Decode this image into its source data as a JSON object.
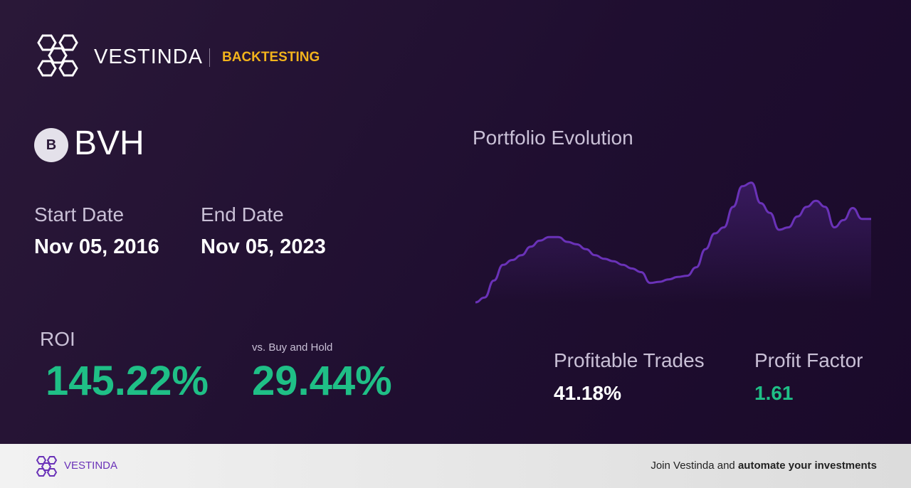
{
  "header": {
    "brand": "VESTINDA",
    "section": "BACKTESTING"
  },
  "asset": {
    "icon": "B",
    "ticker": "BVH"
  },
  "dates": {
    "start_label": "Start Date",
    "start": "Nov 05, 2016",
    "end_label": "End Date",
    "end": "Nov 05, 2023"
  },
  "metrics": {
    "roi_label": "ROI",
    "roi": "145.22%",
    "vs_label": "vs. Buy and Hold",
    "vs": "29.44%",
    "profitable_label": "Profitable Trades",
    "profitable": "41.18%",
    "pf_label": "Profit Factor",
    "pf": "1.61"
  },
  "chart_data": {
    "type": "line",
    "title": "Portfolio Evolution",
    "color": "#6a32b8",
    "values": [
      0,
      4,
      18,
      31,
      35,
      39,
      46,
      51,
      54,
      54,
      50,
      48,
      44,
      39,
      36,
      34,
      31,
      28,
      25,
      16,
      17,
      19,
      21,
      22,
      29,
      44,
      57,
      62,
      79,
      96,
      99,
      82,
      74,
      60,
      62,
      71,
      79,
      84,
      79,
      62,
      68,
      78,
      69,
      69
    ],
    "ylim": [
      0,
      100
    ]
  },
  "footer": {
    "brand": "VESTINDA",
    "cta_text": "Join Vestinda and",
    "cta_bold": "automate your investments"
  }
}
